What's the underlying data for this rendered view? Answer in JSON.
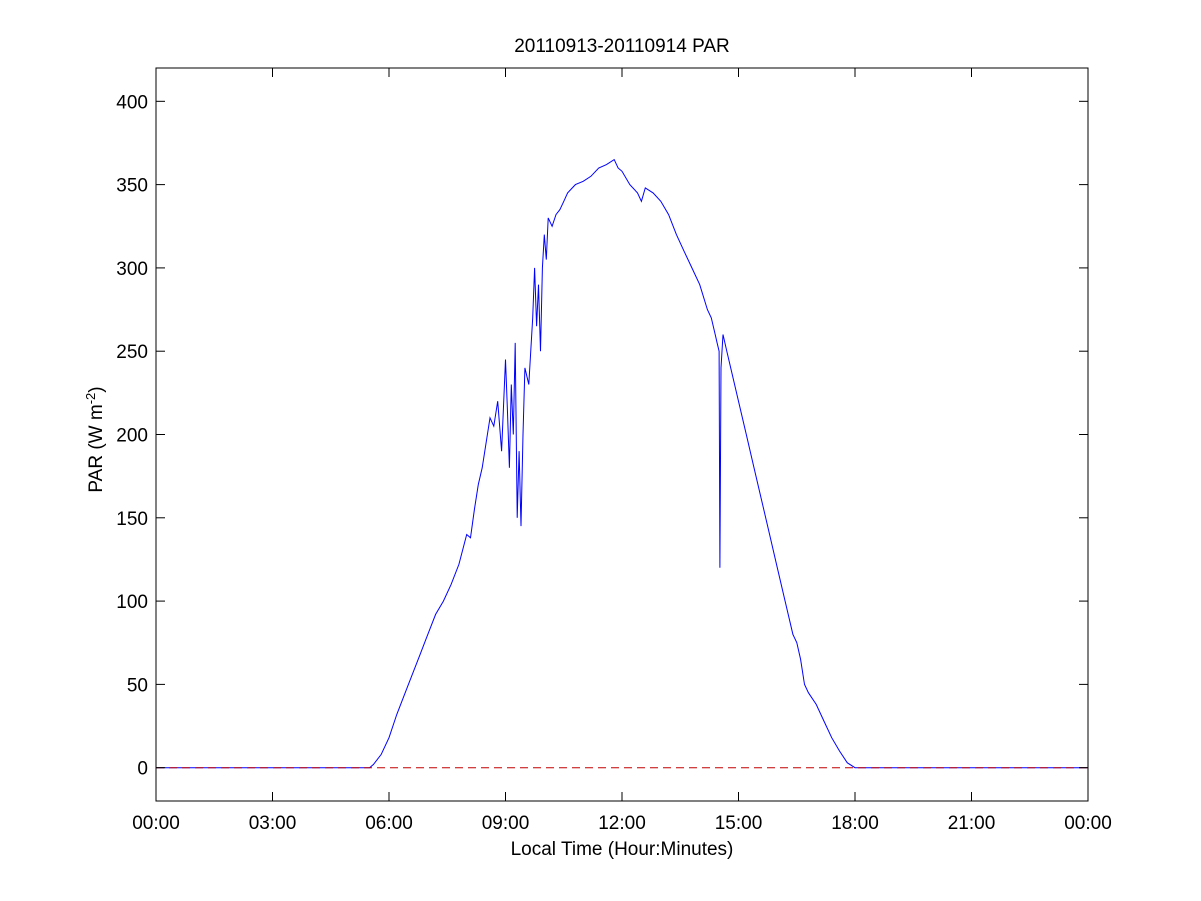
{
  "chart_data": {
    "type": "line",
    "title": "20110913-20110914 PAR",
    "xlabel": "Local Time (Hour:Minutes)",
    "ylabel": {
      "main": "PAR (W m",
      "superscript": "-2",
      "close": ")"
    },
    "xlim": [
      0,
      24
    ],
    "ylim": [
      -20,
      420
    ],
    "x_unit": "hours",
    "xticks": [
      0,
      3,
      6,
      9,
      12,
      15,
      18,
      21,
      24
    ],
    "xtick_labels": [
      "00:00",
      "03:00",
      "06:00",
      "09:00",
      "12:00",
      "15:00",
      "18:00",
      "21:00",
      "00:00"
    ],
    "yticks": [
      0,
      50,
      100,
      150,
      200,
      250,
      300,
      350,
      400
    ],
    "ytick_labels": [
      "0",
      "50",
      "100",
      "150",
      "200",
      "250",
      "300",
      "350",
      "400"
    ],
    "grid": false,
    "series": [
      {
        "color": "#0000ff",
        "style": "solid",
        "x": [
          0,
          5.5,
          5.6,
          5.8,
          6.0,
          6.2,
          6.5,
          6.8,
          7.0,
          7.2,
          7.4,
          7.6,
          7.8,
          8.0,
          8.1,
          8.2,
          8.3,
          8.4,
          8.5,
          8.6,
          8.7,
          8.8,
          8.9,
          9.0,
          9.05,
          9.1,
          9.15,
          9.2,
          9.25,
          9.3,
          9.35,
          9.4,
          9.45,
          9.5,
          9.6,
          9.7,
          9.75,
          9.8,
          9.85,
          9.9,
          9.95,
          10.0,
          10.05,
          10.1,
          10.2,
          10.3,
          10.4,
          10.5,
          10.6,
          10.8,
          11.0,
          11.2,
          11.4,
          11.6,
          11.8,
          11.9,
          12.0,
          12.2,
          12.4,
          12.5,
          12.6,
          12.8,
          13.0,
          13.2,
          13.4,
          13.6,
          13.8,
          14.0,
          14.2,
          14.3,
          14.4,
          14.45,
          14.5,
          14.52,
          14.55,
          14.6,
          14.7,
          14.8,
          15.0,
          15.2,
          15.4,
          15.6,
          15.8,
          16.0,
          16.2,
          16.3,
          16.4,
          16.5,
          16.6,
          16.7,
          16.8,
          17.0,
          17.2,
          17.4,
          17.6,
          17.8,
          18.0,
          18.2,
          18.4,
          24
        ],
        "y": [
          0,
          0,
          2,
          8,
          18,
          32,
          50,
          68,
          80,
          92,
          100,
          110,
          122,
          140,
          138,
          155,
          170,
          180,
          195,
          210,
          205,
          220,
          190,
          245,
          215,
          180,
          230,
          200,
          255,
          150,
          190,
          145,
          200,
          240,
          230,
          270,
          300,
          265,
          290,
          250,
          300,
          320,
          305,
          330,
          325,
          332,
          335,
          340,
          345,
          350,
          352,
          355,
          360,
          362,
          365,
          360,
          358,
          350,
          345,
          340,
          348,
          345,
          340,
          332,
          320,
          310,
          300,
          290,
          275,
          270,
          260,
          255,
          250,
          120,
          240,
          260,
          250,
          240,
          220,
          200,
          180,
          160,
          140,
          120,
          100,
          90,
          80,
          75,
          65,
          50,
          45,
          38,
          28,
          18,
          10,
          3,
          0,
          0,
          0,
          0
        ]
      },
      {
        "color": "#c00000",
        "style": "dashed",
        "x": [
          0,
          24
        ],
        "y": [
          0,
          0
        ]
      }
    ]
  }
}
